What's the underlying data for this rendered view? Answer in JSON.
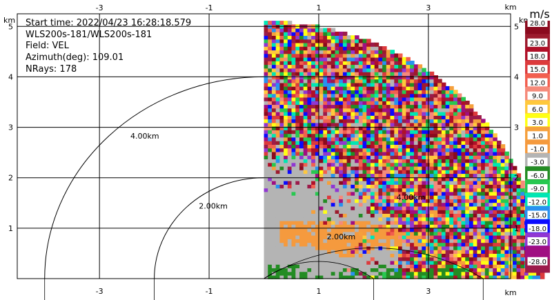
{
  "info": {
    "start_time": "Start time: 2022/04/23 16:28:18.579",
    "site": "WLS200s-181/WLS200s-181",
    "field": "Field: VEL",
    "azimuth": "Azimuth(deg): 109.01",
    "nrays": "NRays: 178"
  },
  "chart_data": {
    "type": "heatmap",
    "subtype": "radar PPI (polar sector)",
    "xlim": [
      -4.5,
      4.5
    ],
    "ylim": [
      0,
      5.25
    ],
    "xticks": [
      -3,
      -1,
      1,
      3
    ],
    "yticks": [
      1,
      2,
      3,
      4,
      5
    ],
    "axis_unit": "km",
    "grid": true,
    "sector_deg": [
      0,
      90
    ],
    "max_range_km": 5.1,
    "range_rings": [
      {
        "radius_km": 2,
        "label": "2.00km"
      },
      {
        "radius_km": 4,
        "label": "4.00km"
      }
    ],
    "colorbar": {
      "unit": "m/s",
      "labels": [
        "28.0",
        "23.0",
        "18.0",
        "15.0",
        "12.0",
        "9.0",
        "6.0",
        "3.0",
        "1.0",
        "-1.0",
        "-3.0",
        "-6.0",
        "-9.0",
        "-12.0",
        "-15.0",
        "-18.0",
        "-23.0",
        "-28.0"
      ],
      "colors": [
        "#8b0a1e",
        "#9c1b2d",
        "#b01028",
        "#dc3a3c",
        "#f25f4f",
        "#f58a7a",
        "#ffc83c",
        "#ffff14",
        "#f5a03c",
        "#f59a3e",
        "#b4b4b4",
        "#238c23",
        "#28c850",
        "#00e6b4",
        "#2891f0",
        "#0a0aff",
        "#9137d2",
        "#a00f82",
        "#9c1b4a"
      ]
    },
    "features": [
      {
        "name": "near-zero clutter",
        "value_range_ms": [
          -1.0,
          1.0
        ],
        "range_km": [
          0,
          2.0
        ]
      },
      {
        "name": "positive band",
        "value_range_ms": [
          1.0,
          3.0
        ],
        "x_km": [
          0.3,
          3.2
        ],
        "y_km": [
          0.6,
          1.2
        ]
      },
      {
        "name": "negative band",
        "value_range_ms": [
          -3.0,
          -1.0
        ],
        "x_km": [
          0.1,
          3.6
        ],
        "y_km": [
          0.0,
          0.3
        ]
      },
      {
        "name": "noise",
        "range_km": [
          2.3,
          5.1
        ]
      }
    ]
  }
}
